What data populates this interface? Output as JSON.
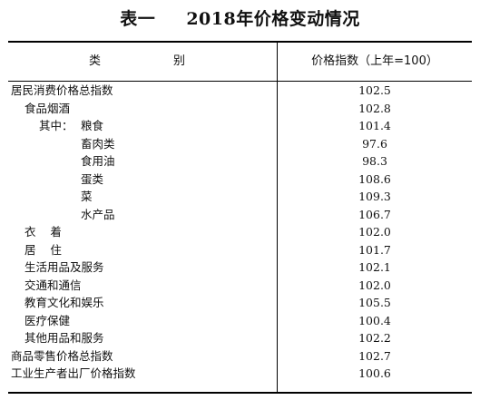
{
  "title": {
    "prefix": "表一",
    "main": "2018年价格变动情况"
  },
  "header": {
    "category": [
      "类",
      "别"
    ],
    "value": "价格指数（上年=100）"
  },
  "rows": [
    {
      "label": "居民消费价格总指数",
      "value": "102.5"
    },
    {
      "label": "食品烟酒",
      "value": "102.8"
    },
    {
      "prefix": "其中：",
      "label": "粮食",
      "value": "101.4"
    },
    {
      "label": "畜肉类",
      "value": "97.6"
    },
    {
      "label": "食用油",
      "value": "98.3"
    },
    {
      "label": "蛋类",
      "value": "108.6"
    },
    {
      "label": "菜",
      "value": "109.3"
    },
    {
      "label": "水产品",
      "value": "106.7"
    },
    {
      "label": "衣    着",
      "value": "102.0"
    },
    {
      "label": "居    住",
      "value": "101.7"
    },
    {
      "label": "生活用品及服务",
      "value": "102.1"
    },
    {
      "label": "交通和通信",
      "value": "102.0"
    },
    {
      "label": "教育文化和娱乐",
      "value": "105.5"
    },
    {
      "label": "医疗保健",
      "value": "100.4"
    },
    {
      "label": "其他用品和服务",
      "value": "102.2"
    },
    {
      "label": "商品零售价格总指数",
      "value": "102.7"
    },
    {
      "label": "工业生产者出厂价格指数",
      "value": "100.6"
    }
  ]
}
